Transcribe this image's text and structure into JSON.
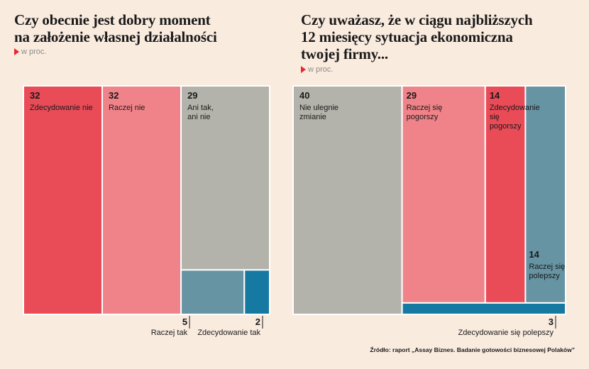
{
  "colors": {
    "background": "#faebdf",
    "red": "#e94b57",
    "pink": "#f08389",
    "gray": "#b3b3ab",
    "steel": "#6694a3",
    "blue": "#1579a1",
    "marker": "#e8262f"
  },
  "source": "Źródło: raport „Assay Biznes. Badanie gotowości biznesowej Polaków”",
  "chart_data": [
    {
      "type": "treemap",
      "title_lines": [
        "Czy obecnie jest dobry moment",
        "na założenie własnej działalności"
      ],
      "unit": "w proc.",
      "items": [
        {
          "value": 32,
          "label": [
            "Zdecydowanie nie"
          ],
          "color": "red"
        },
        {
          "value": 32,
          "label": [
            "Raczej nie"
          ],
          "color": "pink"
        },
        {
          "value": 29,
          "label": [
            "Ani tak,",
            "ani nie"
          ],
          "color": "gray"
        },
        {
          "value": 5,
          "label": [
            "Raczej tak"
          ],
          "color": "steel"
        },
        {
          "value": 2,
          "label": [
            "Zdecydowanie tak"
          ],
          "color": "blue"
        }
      ]
    },
    {
      "type": "treemap",
      "title_lines": [
        "Czy uważasz, że w ciągu najbliższych",
        "12 miesięcy sytuacja ekonomiczna",
        "twojej firmy..."
      ],
      "unit": "w proc.",
      "items": [
        {
          "value": 40,
          "label": [
            "Nie ulegnie",
            "zmianie"
          ],
          "color": "gray"
        },
        {
          "value": 29,
          "label": [
            "Raczej się",
            "pogorszy"
          ],
          "color": "pink"
        },
        {
          "value": 14,
          "label": [
            "Zdecydowanie",
            "się",
            "pogorszy"
          ],
          "color": "red"
        },
        {
          "value": 14,
          "label": [
            "Raczej się",
            "polepszy"
          ],
          "color": "steel"
        },
        {
          "value": 3,
          "label": [
            "Zdecydowanie się polepszy"
          ],
          "color": "blue"
        }
      ]
    }
  ]
}
